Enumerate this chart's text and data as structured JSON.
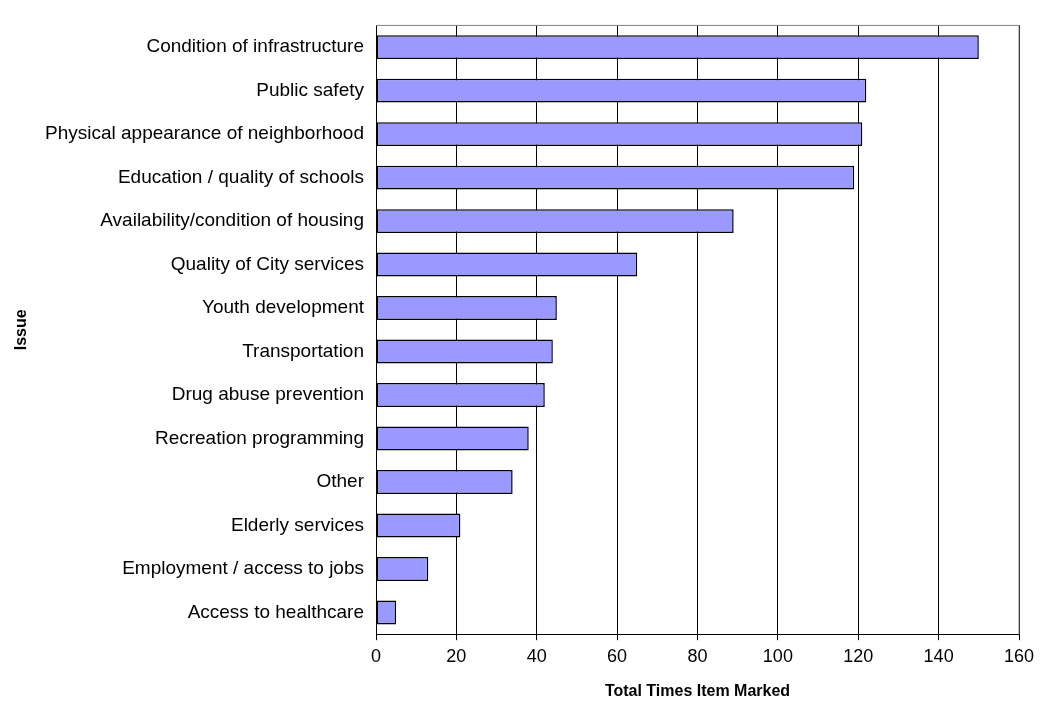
{
  "chart_data": {
    "type": "bar",
    "orientation": "horizontal",
    "xlabel": "Total Times Item Marked",
    "ylabel": "Issue",
    "categories": [
      "Condition of infrastructure",
      "Public safety",
      "Physical appearance of neighborhood",
      "Education / quality of schools",
      "Availability/condition of housing",
      "Quality of City services",
      "Youth development",
      "Transportation",
      "Drug abuse prevention",
      "Recreation programming",
      "Other",
      "Elderly services",
      "Employment / access to jobs",
      "Access to healthcare"
    ],
    "values": [
      150,
      122,
      121,
      119,
      89,
      65,
      45,
      44,
      42,
      38,
      34,
      21,
      13,
      5
    ],
    "color": "#9999ff",
    "xlim": [
      0,
      160
    ],
    "xticks": [
      0,
      20,
      40,
      60,
      80,
      100,
      120,
      140,
      160
    ],
    "grid": "x",
    "legend": false
  }
}
